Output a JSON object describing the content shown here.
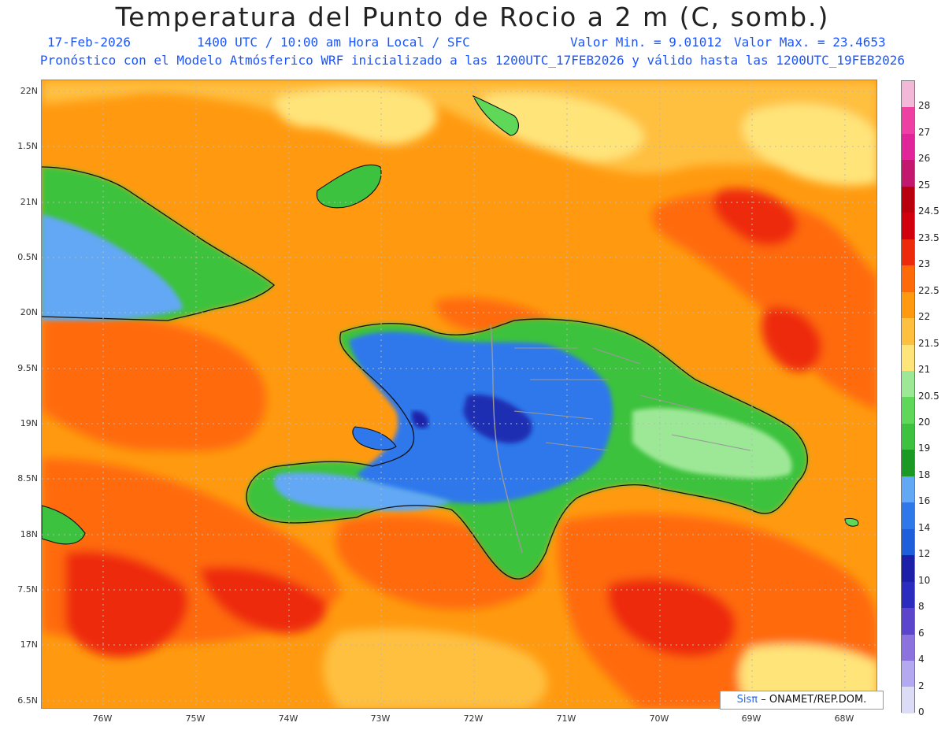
{
  "title": "Temperatura del Punto de Rocio a 2 m (C, somb.)",
  "date": "17-Feb-2026",
  "valid_time": "1400 UTC / 10:00 am Hora Local / SFC",
  "min_label": "Valor Min. = 9.01012",
  "max_label": "Valor Max. = 23.4653",
  "model_line": "Pronóstico con el Modelo Atmósferico WRF inicializado a las 1200UTC_17FEB2026 y válido hasta las  1200UTC_19FEB2026",
  "lat_labels": [
    "22N",
    "1.5N",
    "21N",
    "0.5N",
    "20N",
    "9.5N",
    "19N",
    "8.5N",
    "18N",
    "7.5N",
    "17N",
    "6.5N"
  ],
  "lon_labels": [
    "76W",
    "75W",
    "74W",
    "73W",
    "72W",
    "71W",
    "70W",
    "69W",
    "68W"
  ],
  "colorbar": {
    "labels": [
      "28",
      "27",
      "26",
      "25",
      "24.5",
      "23.5",
      "23",
      "22.5",
      "22",
      "21.5",
      "21",
      "20.5",
      "20",
      "19",
      "18",
      "16",
      "14",
      "12",
      "10",
      "8",
      "6",
      "4",
      "2",
      "0"
    ],
    "colors": [
      "#f2b8d8",
      "#ee3fa3",
      "#e1249a",
      "#c2186e",
      "#b8000e",
      "#d2000e",
      "#ee2a0c",
      "#ff6a08",
      "#ff9a10",
      "#ffc040",
      "#ffe47a",
      "#9de896",
      "#5fd85a",
      "#3cc23e",
      "#1a9a22",
      "#62a8f4",
      "#2e78ec",
      "#1d5edc",
      "#1c20a8",
      "#2b2bc0",
      "#5a45cc",
      "#8c72de",
      "#b4a8f0",
      "#dcdcf6"
    ]
  },
  "credit": {
    "brand": "Sisπ",
    "text": "– ONAMET/REP.DOM."
  }
}
